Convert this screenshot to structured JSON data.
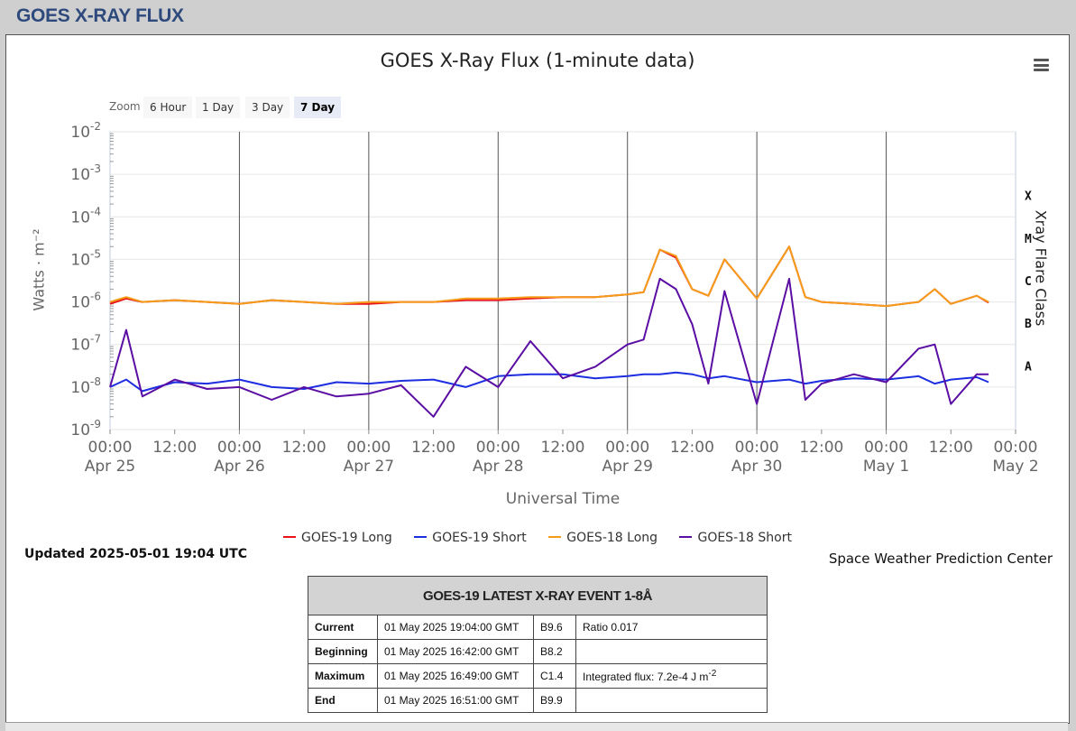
{
  "page": {
    "title": "GOES X-RAY FLUX"
  },
  "chart_data": {
    "type": "line",
    "title": "GOES X-Ray Flux (1-minute data)",
    "xlabel": "Universal Time",
    "ylabel_left": "Watts · m⁻²",
    "ylabel_right": "Xray Flare Class",
    "y_scale": "log",
    "ylim": [
      1e-09,
      0.01
    ],
    "xlim": [
      "2025-04-25 00:00",
      "2025-05-02 00:00"
    ],
    "y_ticks": [
      {
        "exp": "-2",
        "value": 0.01
      },
      {
        "exp": "-3",
        "value": 0.001
      },
      {
        "exp": "-4",
        "value": 0.0001
      },
      {
        "exp": "-5",
        "value": 1e-05
      },
      {
        "exp": "-6",
        "value": 1e-06
      },
      {
        "exp": "-7",
        "value": 1e-07
      },
      {
        "exp": "-8",
        "value": 1e-08
      },
      {
        "exp": "-9",
        "value": 1e-09
      }
    ],
    "y_tick_base": "10",
    "flare_classes": [
      {
        "label": "X",
        "value": 0.0001
      },
      {
        "label": "M",
        "value": 1e-05
      },
      {
        "label": "C",
        "value": 1e-06
      },
      {
        "label": "B",
        "value": 1e-07
      },
      {
        "label": "A",
        "value": 1e-08
      }
    ],
    "x_ticks": [
      {
        "time": "00:00",
        "date": "Apr 25"
      },
      {
        "time": "12:00",
        "date": ""
      },
      {
        "time": "00:00",
        "date": "Apr 26"
      },
      {
        "time": "12:00",
        "date": ""
      },
      {
        "time": "00:00",
        "date": "Apr 27"
      },
      {
        "time": "12:00",
        "date": ""
      },
      {
        "time": "00:00",
        "date": "Apr 28"
      },
      {
        "time": "12:00",
        "date": ""
      },
      {
        "time": "00:00",
        "date": "Apr 29"
      },
      {
        "time": "12:00",
        "date": ""
      },
      {
        "time": "00:00",
        "date": "Apr 30"
      },
      {
        "time": "12:00",
        "date": ""
      },
      {
        "time": "00:00",
        "date": "May 1"
      },
      {
        "time": "12:00",
        "date": ""
      },
      {
        "time": "00:00",
        "date": "May 2"
      }
    ],
    "x": [
      "2025-04-25 00:00",
      "2025-04-25 03:00",
      "2025-04-25 06:00",
      "2025-04-25 12:00",
      "2025-04-25 18:00",
      "2025-04-26 00:00",
      "2025-04-26 06:00",
      "2025-04-26 12:00",
      "2025-04-26 18:00",
      "2025-04-27 00:00",
      "2025-04-27 06:00",
      "2025-04-27 12:00",
      "2025-04-27 18:00",
      "2025-04-28 00:00",
      "2025-04-28 06:00",
      "2025-04-28 12:00",
      "2025-04-28 18:00",
      "2025-04-29 00:00",
      "2025-04-29 03:00",
      "2025-04-29 06:00",
      "2025-04-29 09:00",
      "2025-04-29 12:00",
      "2025-04-29 15:00",
      "2025-04-29 18:00",
      "2025-04-30 00:00",
      "2025-04-30 06:00",
      "2025-04-30 09:00",
      "2025-04-30 12:00",
      "2025-04-30 18:00",
      "2025-05-01 00:00",
      "2025-05-01 06:00",
      "2025-05-01 09:00",
      "2025-05-01 12:00",
      "2025-05-01 16:48",
      "2025-05-01 19:00"
    ],
    "series": [
      {
        "name": "GOES-19 Long",
        "color": "#e8141a",
        "values": [
          9e-07,
          1.2e-06,
          1e-06,
          1.1e-06,
          1e-06,
          9e-07,
          1.1e-06,
          1e-06,
          9e-07,
          9e-07,
          1e-06,
          1e-06,
          1.1e-06,
          1.1e-06,
          1.2e-06,
          1.3e-06,
          1.3e-06,
          1.5e-06,
          1.7e-06,
          1.7e-05,
          1.1e-05,
          2e-06,
          1.4e-06,
          1e-05,
          1.2e-06,
          2e-05,
          1.3e-06,
          1e-06,
          9e-07,
          8e-07,
          1e-06,
          2e-06,
          9e-07,
          1.4e-06,
          9.6e-07
        ]
      },
      {
        "name": "GOES-19 Short",
        "color": "#1c2ee0",
        "values": [
          1e-08,
          1.5e-08,
          8e-09,
          1.3e-08,
          1.2e-08,
          1.5e-08,
          1e-08,
          9e-09,
          1.3e-08,
          1.2e-08,
          1.4e-08,
          1.5e-08,
          1e-08,
          1.8e-08,
          2e-08,
          2e-08,
          1.6e-08,
          1.8e-08,
          2e-08,
          2e-08,
          2.2e-08,
          2e-08,
          1.6e-08,
          1.8e-08,
          1.3e-08,
          1.5e-08,
          1.2e-08,
          1.4e-08,
          1.6e-08,
          1.5e-08,
          1.8e-08,
          1.2e-08,
          1.5e-08,
          1.7e-08,
          1.3e-08
        ]
      },
      {
        "name": "GOES-18 Long",
        "color": "#f59d1b",
        "values": [
          1e-06,
          1.3e-06,
          1e-06,
          1.1e-06,
          1e-06,
          9e-07,
          1.1e-06,
          1e-06,
          9e-07,
          1e-06,
          1e-06,
          1e-06,
          1.2e-06,
          1.2e-06,
          1.3e-06,
          1.3e-06,
          1.3e-06,
          1.5e-06,
          1.7e-06,
          1.7e-05,
          1.2e-05,
          2e-06,
          1.4e-06,
          1e-05,
          1.2e-06,
          2e-05,
          1.3e-06,
          1e-06,
          9e-07,
          8e-07,
          1e-06,
          2e-06,
          9e-07,
          1.4e-06,
          1e-06
        ]
      },
      {
        "name": "GOES-18 Short",
        "color": "#5a0ea3",
        "values": [
          1e-08,
          2.2e-07,
          6e-09,
          1.5e-08,
          9e-09,
          1e-08,
          5e-09,
          1e-08,
          6e-09,
          7e-09,
          1.1e-08,
          2e-09,
          3e-08,
          1e-08,
          1.2e-07,
          1.6e-08,
          3e-08,
          1e-07,
          1.3e-07,
          3.5e-06,
          2e-06,
          3e-07,
          1.2e-08,
          1.8e-06,
          4e-09,
          3.5e-06,
          5e-09,
          1.2e-08,
          2e-08,
          1.3e-08,
          8e-08,
          1e-07,
          4e-09,
          2e-08,
          2e-08
        ]
      }
    ],
    "legend_position": "bottom"
  },
  "controls": {
    "zoom_label": "Zoom",
    "zoom_buttons": [
      "6 Hour",
      "1 Day",
      "3 Day",
      "7 Day"
    ],
    "zoom_active": "7 Day"
  },
  "footer": {
    "updated": "Updated 2025-05-01 19:04 UTC",
    "credit": "Space Weather Prediction Center"
  },
  "event_table": {
    "title": "GOES-19 LATEST X-RAY EVENT 1-8Å",
    "rows": [
      {
        "label": "Current",
        "time": "01 May 2025 19:04:00 GMT",
        "class": "B9.6",
        "note": "Ratio 0.017",
        "note_sup": ""
      },
      {
        "label": "Beginning",
        "time": "01 May 2025 16:42:00 GMT",
        "class": "B8.2",
        "note": "",
        "note_sup": ""
      },
      {
        "label": "Maximum",
        "time": "01 May 2025 16:49:00 GMT",
        "class": "C1.4",
        "note": "Integrated flux: 7.2e-4 J m",
        "note_sup": "-2"
      },
      {
        "label": "End",
        "time": "01 May 2025 16:51:00 GMT",
        "class": "B9.9",
        "note": "",
        "note_sup": ""
      }
    ]
  }
}
